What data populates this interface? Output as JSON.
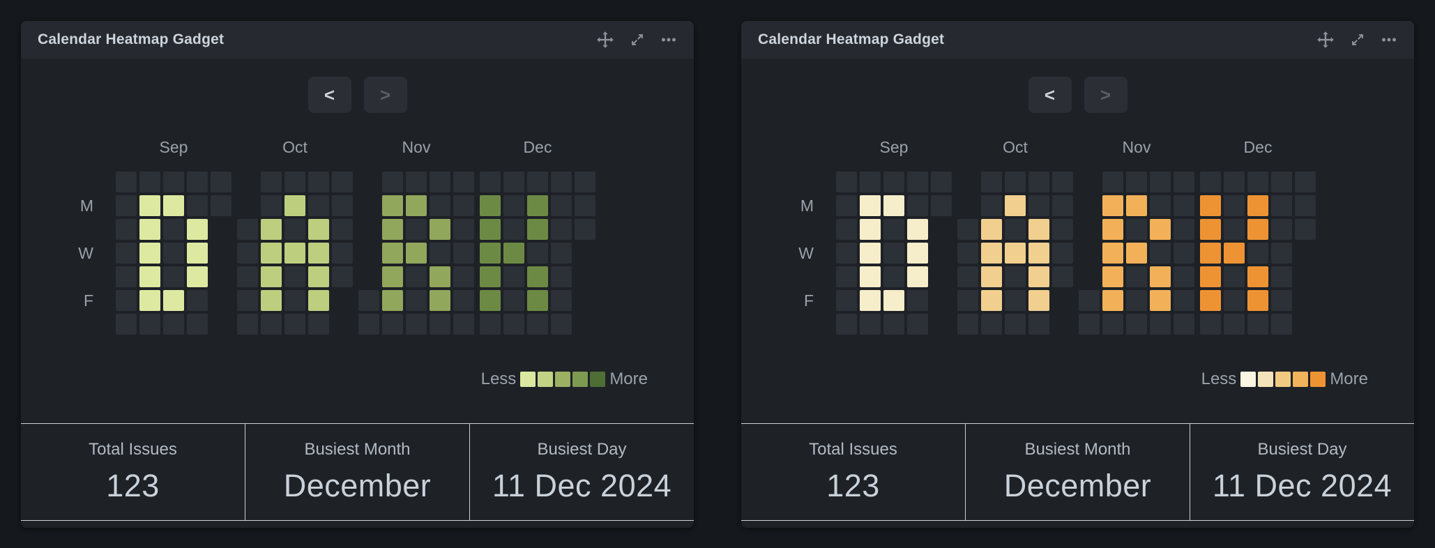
{
  "theme": {
    "page_bg": "#15181c",
    "gadget_bg": "#1e2126",
    "header_bg": "#26292f",
    "stats_border": "#ced1d5"
  },
  "gadgets": [
    {
      "title": "Calendar Heatmap Gadget",
      "icons": [
        "move",
        "expand",
        "ellipsis-menu"
      ],
      "nav": {
        "prev_label": "<",
        "next_label": ">",
        "next_disabled": true
      },
      "legend": {
        "less_label": "Less",
        "more_label": "More"
      },
      "stats": [
        {
          "label": "Total Issues",
          "value": "123"
        },
        {
          "label": "Busiest Month",
          "value": "December"
        },
        {
          "label": "Busiest Day",
          "value": "11 Dec 2024"
        }
      ]
    },
    {
      "title": "Calendar Heatmap Gadget",
      "icons": [
        "move",
        "expand",
        "ellipsis-menu"
      ],
      "nav": {
        "prev_label": "<",
        "next_label": ">",
        "next_disabled": true
      },
      "legend": {
        "less_label": "Less",
        "more_label": "More"
      },
      "stats": [
        {
          "label": "Total Issues",
          "value": "123"
        },
        {
          "label": "Busiest Month",
          "value": "December"
        },
        {
          "label": "Busiest Day",
          "value": "11 Dec 2024"
        }
      ]
    }
  ],
  "chart_data": [
    {
      "type": "heatmap",
      "title": "Calendar Heatmap Gadget (green theme, Sep-Dec 2024, cells spell DARK)",
      "months": [
        "Sep",
        "Oct",
        "Nov",
        "Dec"
      ],
      "day_row_labels": [
        "",
        "M",
        "",
        "W",
        "",
        "F",
        ""
      ],
      "legend_labels": [
        "Less",
        "More"
      ],
      "legend_colors": [
        "#dce8a2",
        "#c3d385",
        "#9cb063",
        "#7d9a52",
        "#4f6e35"
      ],
      "month_colors": {
        "Sep": "#dde9a1",
        "Oct": "#bdcf7e",
        "Nov": "#91a75c",
        "Dec": "#6d8a45"
      },
      "empty_color": "#2c3037",
      "grids": {
        "Sep": [
          [
            0,
            0,
            0,
            0,
            0
          ],
          [
            0,
            1,
            1,
            0,
            0
          ],
          [
            0,
            1,
            0,
            1,
            null
          ],
          [
            0,
            1,
            0,
            1,
            null
          ],
          [
            0,
            1,
            0,
            1,
            null
          ],
          [
            0,
            1,
            1,
            0,
            null
          ],
          [
            0,
            0,
            0,
            0,
            null
          ]
        ],
        "Oct": [
          [
            null,
            0,
            0,
            0,
            0
          ],
          [
            null,
            0,
            1,
            0,
            0
          ],
          [
            0,
            1,
            0,
            1,
            0
          ],
          [
            0,
            1,
            1,
            1,
            0
          ],
          [
            0,
            1,
            0,
            1,
            0
          ],
          [
            0,
            1,
            0,
            1,
            null
          ],
          [
            0,
            0,
            0,
            0,
            null
          ]
        ],
        "Nov": [
          [
            null,
            0,
            0,
            0,
            0
          ],
          [
            null,
            1,
            1,
            0,
            0
          ],
          [
            null,
            1,
            0,
            1,
            0
          ],
          [
            null,
            1,
            1,
            0,
            0
          ],
          [
            null,
            1,
            0,
            1,
            0
          ],
          [
            0,
            1,
            0,
            1,
            0
          ],
          [
            0,
            0,
            0,
            0,
            0
          ]
        ],
        "Dec": [
          [
            0,
            0,
            0,
            0,
            0
          ],
          [
            1,
            0,
            1,
            0,
            0
          ],
          [
            1,
            0,
            1,
            0,
            0
          ],
          [
            1,
            1,
            0,
            0,
            null
          ],
          [
            1,
            0,
            1,
            0,
            null
          ],
          [
            1,
            0,
            1,
            0,
            null
          ],
          [
            0,
            0,
            0,
            0,
            null
          ]
        ]
      },
      "stats_readout": {
        "total_issues": 123,
        "busiest_month": "December",
        "busiest_day": "11 Dec 2024"
      }
    },
    {
      "type": "heatmap",
      "title": "Calendar Heatmap Gadget (orange theme, Sep-Dec 2024, cells spell DARK)",
      "months": [
        "Sep",
        "Oct",
        "Nov",
        "Dec"
      ],
      "day_row_labels": [
        "",
        "M",
        "",
        "W",
        "",
        "F",
        ""
      ],
      "legend_labels": [
        "Less",
        "More"
      ],
      "legend_colors": [
        "#fbf6e3",
        "#f4e3ba",
        "#f0ca83",
        "#f1b25c",
        "#ee9334"
      ],
      "month_colors": {
        "Sep": "#f6edca",
        "Oct": "#f1cf8e",
        "Nov": "#f2b159",
        "Dec": "#ee9334"
      },
      "empty_color": "#2c3037",
      "grids": {
        "Sep": [
          [
            0,
            0,
            0,
            0,
            0
          ],
          [
            0,
            1,
            1,
            0,
            0
          ],
          [
            0,
            1,
            0,
            1,
            null
          ],
          [
            0,
            1,
            0,
            1,
            null
          ],
          [
            0,
            1,
            0,
            1,
            null
          ],
          [
            0,
            1,
            1,
            0,
            null
          ],
          [
            0,
            0,
            0,
            0,
            null
          ]
        ],
        "Oct": [
          [
            null,
            0,
            0,
            0,
            0
          ],
          [
            null,
            0,
            1,
            0,
            0
          ],
          [
            0,
            1,
            0,
            1,
            0
          ],
          [
            0,
            1,
            1,
            1,
            0
          ],
          [
            0,
            1,
            0,
            1,
            0
          ],
          [
            0,
            1,
            0,
            1,
            null
          ],
          [
            0,
            0,
            0,
            0,
            null
          ]
        ],
        "Nov": [
          [
            null,
            0,
            0,
            0,
            0
          ],
          [
            null,
            1,
            1,
            0,
            0
          ],
          [
            null,
            1,
            0,
            1,
            0
          ],
          [
            null,
            1,
            1,
            0,
            0
          ],
          [
            null,
            1,
            0,
            1,
            0
          ],
          [
            0,
            1,
            0,
            1,
            0
          ],
          [
            0,
            0,
            0,
            0,
            0
          ]
        ],
        "Dec": [
          [
            0,
            0,
            0,
            0,
            0
          ],
          [
            1,
            0,
            1,
            0,
            0
          ],
          [
            1,
            0,
            1,
            0,
            0
          ],
          [
            1,
            1,
            0,
            0,
            null
          ],
          [
            1,
            0,
            1,
            0,
            null
          ],
          [
            1,
            0,
            1,
            0,
            null
          ],
          [
            0,
            0,
            0,
            0,
            null
          ]
        ]
      },
      "stats_readout": {
        "total_issues": 123,
        "busiest_month": "December",
        "busiest_day": "11 Dec 2024"
      }
    }
  ]
}
